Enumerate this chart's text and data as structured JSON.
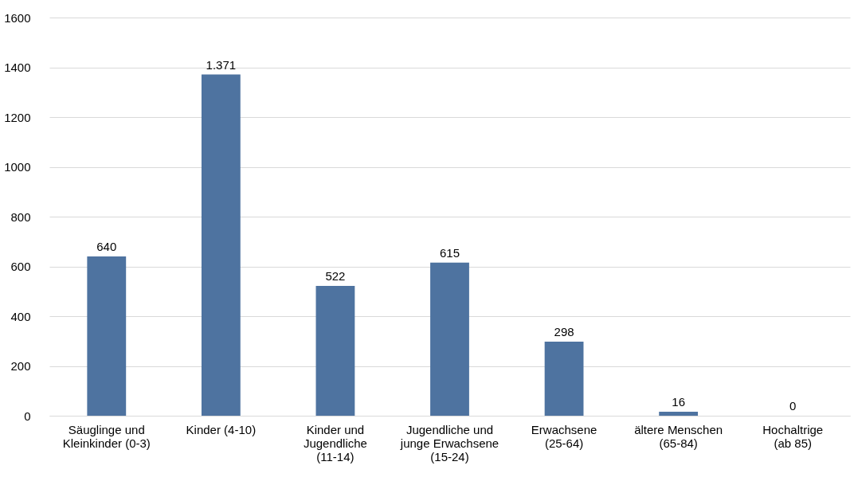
{
  "chart_data": {
    "type": "bar",
    "categories": [
      "Säuglinge und Kleinkinder (0-3)",
      "Kinder (4-10)",
      "Kinder und Jugendliche (11-14)",
      "Jugendliche und junge Erwachsene (15-24)",
      "Erwachsene (25-64)",
      "ältere Menschen (65-84)",
      "Hochaltrige (ab 85)"
    ],
    "values": [
      640,
      1371,
      522,
      615,
      298,
      16,
      0
    ],
    "value_labels": [
      "640",
      "1.371",
      "522",
      "615",
      "298",
      "16",
      "0"
    ],
    "color": "#4e73a0",
    "ylim": [
      0,
      1600
    ],
    "yticks": [
      0,
      200,
      400,
      600,
      800,
      1000,
      1200,
      1400,
      1600
    ],
    "grid": "y"
  }
}
